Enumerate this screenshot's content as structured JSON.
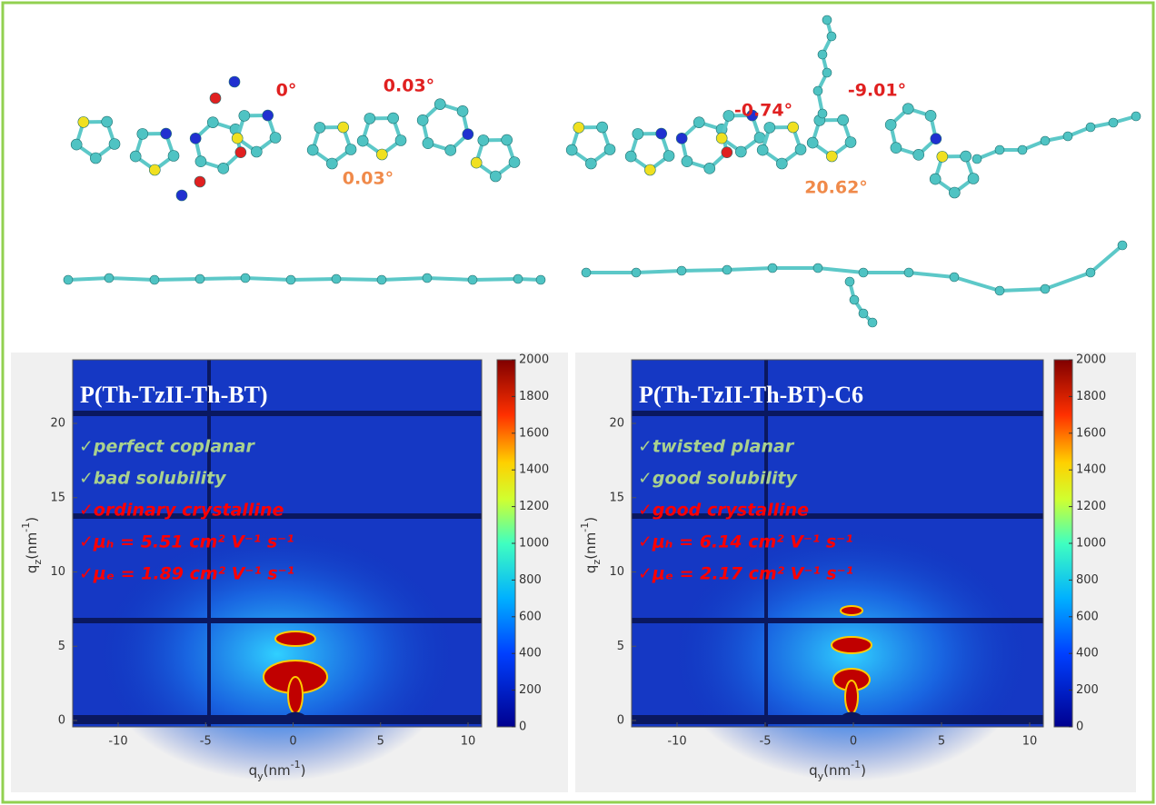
{
  "molecules": [
    {
      "angles": [
        "0°",
        "0.03°",
        "0.03°"
      ]
    },
    {
      "angles": [
        "-0.74°",
        "-9.01°",
        "20.62°"
      ]
    }
  ],
  "panels": [
    {
      "title": "P(Th-TzII-Th-BT)",
      "notes": [
        "✓perfect coplanar",
        "✓bad solubility",
        "✓ordinary crystalline",
        "✓μₕ = 5.51 cm² V⁻¹ s⁻¹",
        "✓μₑ = 1.89 cm² V⁻¹ s⁻¹"
      ],
      "x_ticks": [
        -10,
        -5,
        0,
        5,
        10
      ],
      "y_ticks": [
        0,
        5,
        10,
        15,
        20
      ],
      "colorbar_ticks": [
        0,
        200,
        400,
        600,
        800,
        1000,
        1200,
        1400,
        1600,
        1800,
        2000
      ],
      "x_label": [
        "q",
        "y",
        "(nm",
        "-1",
        ")"
      ],
      "y_label": [
        "q",
        "z",
        "(nm",
        "-1",
        ")"
      ]
    },
    {
      "title": "P(Th-TzII-Th-BT)-C6",
      "notes": [
        "✓twisted planar",
        "✓good solubility",
        "✓good crystalline",
        "✓μₕ = 6.14 cm² V⁻¹ s⁻¹",
        "✓μₑ = 2.17 cm² V⁻¹ s⁻¹"
      ],
      "x_ticks": [
        -10,
        -5,
        0,
        5,
        10
      ],
      "y_ticks": [
        0,
        5,
        10,
        15,
        20
      ],
      "colorbar_ticks": [
        0,
        200,
        400,
        600,
        800,
        1000,
        1200,
        1400,
        1600,
        1800,
        2000
      ],
      "x_label": [
        "q",
        "y",
        "(nm",
        "-1",
        ")"
      ],
      "y_label": [
        "q",
        "z",
        "(nm",
        "-1",
        ")"
      ]
    }
  ]
}
